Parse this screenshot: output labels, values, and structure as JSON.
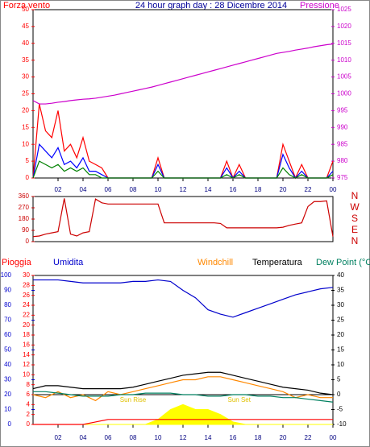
{
  "chart_data": [
    {
      "type": "line",
      "title": "24 hour graph day : 28 Dicembre 2014",
      "xlim": [
        0,
        24
      ],
      "xticks": [
        {
          "value": 2,
          "label": "02"
        },
        {
          "value": 4,
          "label": "04"
        },
        {
          "value": 6,
          "label": "06"
        },
        {
          "value": 8,
          "label": "08"
        },
        10,
        12,
        14,
        16,
        18,
        20,
        22,
        {
          "value": 24,
          "label": "00"
        }
      ],
      "ylim": [
        0,
        50
      ],
      "yticks": [
        0,
        5,
        10,
        15,
        20,
        25,
        30,
        35,
        40,
        45,
        50
      ],
      "y2lim": [
        975,
        1025
      ],
      "y2ticks": [
        975,
        980,
        985,
        990,
        995,
        1000,
        1005,
        1010,
        1015,
        1020,
        1025
      ],
      "x": [
        0,
        0.5,
        1,
        1.5,
        2,
        2.5,
        3,
        3.5,
        4,
        4.5,
        5,
        5.5,
        6,
        6.5,
        7,
        7.5,
        8,
        8.5,
        9,
        9.5,
        10,
        10.5,
        11,
        11.5,
        12,
        12.5,
        13,
        13.5,
        14,
        14.5,
        15,
        15.5,
        16,
        16.5,
        17,
        17.5,
        18,
        18.5,
        19,
        19.5,
        20,
        20.5,
        21,
        21.5,
        22,
        22.5,
        23,
        23.5,
        24
      ],
      "series": [
        {
          "name": "Forza vento",
          "color": "#ff0000",
          "values": [
            0,
            22,
            14,
            12,
            20,
            8,
            10,
            6,
            12,
            5,
            4,
            3,
            0,
            0,
            0,
            0,
            0,
            0,
            0,
            0,
            6,
            0,
            0,
            0,
            0,
            0,
            0,
            0,
            0,
            0,
            0,
            5,
            0,
            4,
            0,
            0,
            0,
            0,
            0,
            0,
            10,
            5,
            0,
            4,
            0,
            0,
            0,
            0,
            5
          ]
        },
        {
          "color": "#0000ff",
          "values": [
            0,
            10,
            8,
            6,
            9,
            4,
            5,
            3,
            6,
            2,
            2,
            1,
            0,
            0,
            0,
            0,
            0,
            0,
            0,
            0,
            4,
            0,
            0,
            0,
            0,
            0,
            0,
            0,
            0,
            0,
            0,
            3,
            0,
            2,
            0,
            0,
            0,
            0,
            0,
            0,
            7,
            3,
            0,
            2,
            0,
            0,
            0,
            0,
            2
          ]
        },
        {
          "color": "#008000",
          "values": [
            0,
            5,
            4,
            3,
            4,
            2,
            3,
            2,
            3,
            1,
            1,
            0,
            0,
            0,
            0,
            0,
            0,
            0,
            0,
            0,
            2,
            0,
            0,
            0,
            0,
            0,
            0,
            0,
            0,
            0,
            0,
            1,
            0,
            1,
            0,
            0,
            0,
            0,
            0,
            0,
            3,
            1,
            0,
            1,
            0,
            0,
            0,
            0,
            1
          ]
        },
        {
          "name": "Pressione",
          "color": "#cc00cc",
          "axis": "y2",
          "values": [
            998,
            997,
            997,
            997.2,
            997.5,
            997.7,
            998,
            998.2,
            998.4,
            998.5,
            998.7,
            999,
            999.3,
            999.6,
            1000,
            1000.4,
            1000.8,
            1001.2,
            1001.6,
            1002,
            1002.5,
            1003,
            1003.5,
            1004,
            1004.5,
            1005,
            1005.5,
            1006,
            1006.5,
            1007,
            1007.5,
            1008,
            1008.5,
            1009,
            1009.5,
            1010,
            1010.5,
            1011,
            1011.5,
            1012,
            1012.3,
            1012.6,
            1013,
            1013.3,
            1013.6,
            1014,
            1014.3,
            1014.6,
            1014.8
          ]
        }
      ]
    },
    {
      "type": "line",
      "xlim": [
        0,
        24
      ],
      "ylim": [
        0,
        360
      ],
      "yticks": [
        0,
        90,
        180,
        270,
        360
      ],
      "y2lim": [
        0,
        360
      ],
      "y2ticks": [
        {
          "value": 360,
          "label": "N"
        },
        {
          "value": 270,
          "label": "W"
        },
        {
          "value": 180,
          "label": "S"
        },
        {
          "value": 90,
          "label": "E"
        },
        {
          "value": 0,
          "label": "N"
        }
      ],
      "x": [
        0,
        0.5,
        1,
        1.5,
        2,
        2.5,
        3,
        3.5,
        4,
        4.5,
        5,
        5.5,
        6,
        6.5,
        7,
        7.5,
        8,
        8.5,
        9,
        9.5,
        10,
        10.5,
        11,
        11.5,
        12,
        12.5,
        13,
        13.5,
        14,
        14.5,
        15,
        15.5,
        16,
        16.5,
        17,
        17.5,
        18,
        18.5,
        19,
        19.5,
        20,
        20.5,
        21,
        21.5,
        22,
        22.5,
        23,
        23.5,
        24
      ],
      "series": [
        {
          "color": "#cc0000",
          "values": [
            40,
            45,
            60,
            70,
            80,
            345,
            60,
            45,
            70,
            80,
            340,
            310,
            300,
            300,
            300,
            300,
            300,
            300,
            300,
            300,
            300,
            150,
            150,
            150,
            150,
            150,
            150,
            150,
            150,
            150,
            145,
            110,
            110,
            110,
            110,
            110,
            110,
            110,
            110,
            110,
            115,
            130,
            140,
            150,
            280,
            320,
            320,
            325,
            40
          ]
        }
      ]
    },
    {
      "type": "line",
      "xlim": [
        0,
        24
      ],
      "xticks": [
        {
          "value": 2,
          "label": "02"
        },
        {
          "value": 4,
          "label": "04"
        },
        {
          "value": 6,
          "label": "06"
        },
        {
          "value": 8,
          "label": "08"
        },
        10,
        12,
        14,
        16,
        18,
        20,
        22,
        {
          "value": 24,
          "label": "00"
        }
      ],
      "ylim": [
        0,
        100
      ],
      "yticks": [
        0,
        10,
        20,
        30,
        40,
        50,
        60,
        70,
        80,
        90,
        100
      ],
      "y3lim": [
        0,
        30
      ],
      "y3ticks": [
        0,
        2,
        4,
        6,
        8,
        10,
        12,
        14,
        16,
        18,
        20,
        22,
        24,
        26,
        28,
        30
      ],
      "y2lim": [
        -10,
        40
      ],
      "y2ticks": [
        -10,
        -5,
        0,
        5,
        10,
        15,
        20,
        25,
        30,
        35,
        40
      ],
      "annotations": [
        {
          "text": "Sun Rise",
          "x": 8
        },
        {
          "text": "Sun Set",
          "x": 16.5
        }
      ],
      "x": [
        0,
        1,
        2,
        3,
        4,
        5,
        6,
        7,
        8,
        9,
        10,
        11,
        12,
        13,
        14,
        15,
        16,
        17,
        18,
        19,
        20,
        21,
        22,
        23,
        24
      ],
      "series": [
        {
          "color": "#ffff00",
          "axis": "y3",
          "fill": true,
          "values": [
            0,
            0,
            0,
            0,
            0,
            0,
            0,
            0,
            0,
            0,
            1,
            3,
            4,
            3,
            3,
            2,
            0.5,
            0,
            0,
            0,
            0,
            0,
            0,
            0,
            0
          ]
        },
        {
          "name": "Pioggia",
          "color": "#ff0000",
          "axis": "y3",
          "values": [
            0,
            0,
            0,
            0,
            0,
            0.5,
            1,
            1,
            1,
            1,
            1,
            1,
            1,
            1,
            1,
            1,
            1,
            1,
            1,
            1,
            1,
            1,
            1,
            1,
            1
          ]
        },
        {
          "name": "Umidita",
          "color": "#0000cc",
          "values": [
            97,
            97,
            97,
            96,
            95,
            95,
            95,
            95,
            96,
            96,
            97,
            96,
            90,
            85,
            77,
            74,
            72,
            75,
            78,
            81,
            84,
            87,
            89,
            91,
            92
          ]
        },
        {
          "name": "Windchill",
          "color": "#ff8800",
          "axis": "y2",
          "values": [
            0,
            -1,
            1,
            -1,
            0,
            -2,
            1,
            0,
            1,
            2,
            3,
            4,
            5,
            5,
            6,
            6,
            5,
            4,
            3,
            2,
            1,
            -1,
            0,
            -1,
            -1
          ]
        },
        {
          "name": "Temperatura",
          "color": "#000000",
          "axis": "y2",
          "values": [
            2,
            3,
            3,
            2.5,
            2,
            2,
            2,
            2,
            2.5,
            3.5,
            4.5,
            5.5,
            6.5,
            7,
            7.5,
            7.5,
            6.5,
            5.5,
            4.5,
            3.5,
            2.5,
            2,
            1.5,
            0.5,
            0
          ]
        },
        {
          "name": "Dew Point (°C",
          "color": "#008060",
          "axis": "y2",
          "values": [
            1,
            1,
            0.5,
            0,
            -0.5,
            -0.5,
            -0.5,
            0,
            0,
            0.5,
            0.5,
            0.5,
            0,
            0,
            -0.5,
            -0.5,
            0,
            0,
            -0.5,
            -0.5,
            -1,
            -1,
            -1.5,
            -2,
            -2.5
          ]
        }
      ]
    }
  ]
}
